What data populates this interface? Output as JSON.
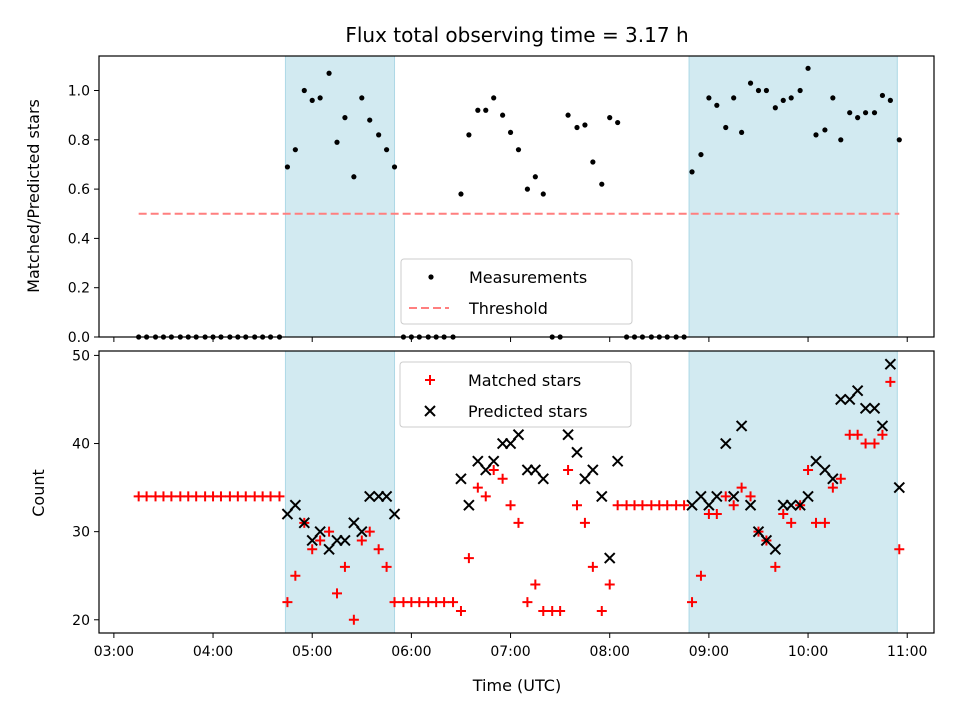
{
  "chart_data": {
    "title": "Flux total observing time = 3.17 h",
    "xlabel": "Time (UTC)",
    "x_ticks": [
      "03:00",
      "04:00",
      "05:00",
      "06:00",
      "07:00",
      "08:00",
      "09:00",
      "10:00",
      "11:00"
    ],
    "x_tick_hours": [
      3,
      4,
      5,
      6,
      7,
      8,
      9,
      10,
      11
    ],
    "xlim_hours": [
      2.85,
      11.27
    ],
    "shaded_spans_hours": [
      [
        4.73,
        5.83
      ],
      [
        8.8,
        10.9
      ]
    ],
    "shade_color": "#add8e6",
    "panels": [
      {
        "type": "scatter",
        "ylabel": "Matched/Predicted stars",
        "ylim": [
          0,
          1.14
        ],
        "yticks": [
          0.0,
          0.2,
          0.4,
          0.6,
          0.8,
          1.0
        ],
        "legend_position": "lower center",
        "legend": [
          "Measurements",
          "Threshold"
        ],
        "series": [
          {
            "name": "Measurements",
            "marker": "dot",
            "color": "#000000",
            "x": [
              3.25,
              3.33,
              3.42,
              3.5,
              3.58,
              3.67,
              3.75,
              3.83,
              3.92,
              4.0,
              4.08,
              4.17,
              4.25,
              4.33,
              4.42,
              4.5,
              4.58,
              4.67,
              4.75,
              4.83,
              4.92,
              5.0,
              5.08,
              5.17,
              5.25,
              5.33,
              5.42,
              5.5,
              5.58,
              5.67,
              5.75,
              5.83,
              5.92,
              6.0,
              6.08,
              6.17,
              6.25,
              6.33,
              6.42,
              6.5,
              6.58,
              6.67,
              6.75,
              6.83,
              6.92,
              7.0,
              7.08,
              7.17,
              7.25,
              7.33,
              7.42,
              7.5,
              7.58,
              7.67,
              7.75,
              7.83,
              7.92,
              8.0,
              8.08,
              8.17,
              8.25,
              8.33,
              8.42,
              8.5,
              8.58,
              8.67,
              8.75,
              8.83,
              8.92,
              9.0,
              9.08,
              9.17,
              9.25,
              9.33,
              9.42,
              9.5,
              9.58,
              9.67,
              9.75,
              9.83,
              9.92,
              10.0,
              10.08,
              10.17,
              10.25,
              10.33,
              10.42,
              10.5,
              10.58,
              10.67,
              10.75,
              10.83,
              10.92
            ],
            "y": [
              0.0,
              0.0,
              0.0,
              0.0,
              0.0,
              0.0,
              0.0,
              0.0,
              0.0,
              0.0,
              0.0,
              0.0,
              0.0,
              0.0,
              0.0,
              0.0,
              0.0,
              0.0,
              0.69,
              0.76,
              1.0,
              0.96,
              0.97,
              1.07,
              0.79,
              0.89,
              0.65,
              0.97,
              0.88,
              0.82,
              0.76,
              0.69,
              0.0,
              0.0,
              0.0,
              0.0,
              0.0,
              0.0,
              0.0,
              0.58,
              0.82,
              0.92,
              0.92,
              0.97,
              0.9,
              0.83,
              0.76,
              0.6,
              0.65,
              0.58,
              0.0,
              0.0,
              0.9,
              0.85,
              0.86,
              0.71,
              0.62,
              0.89,
              0.87,
              0.0,
              0.0,
              0.0,
              0.0,
              0.0,
              0.0,
              0.0,
              0.0,
              0.67,
              0.74,
              0.97,
              0.94,
              0.85,
              0.97,
              0.83,
              1.03,
              1.0,
              1.0,
              0.93,
              0.96,
              0.97,
              1.0,
              1.09,
              0.82,
              0.84,
              0.97,
              0.8,
              0.91,
              0.89,
              0.91,
              0.91,
              0.98,
              0.96,
              0.8
            ]
          },
          {
            "name": "Threshold",
            "marker": "dashed-line",
            "color": "#ff7f7f",
            "x": [
              3.25,
              10.92
            ],
            "y": [
              0.5,
              0.5
            ]
          }
        ]
      },
      {
        "type": "scatter",
        "ylabel": "Count",
        "ylim": [
          18.5,
          50.5
        ],
        "yticks": [
          20,
          30,
          40,
          50
        ],
        "legend_position": "upper center",
        "legend": [
          "Matched stars",
          "Predicted stars"
        ],
        "series": [
          {
            "name": "Matched stars",
            "marker": "plus",
            "color": "#ff0000",
            "x": [
              3.25,
              3.33,
              3.42,
              3.5,
              3.58,
              3.67,
              3.75,
              3.83,
              3.92,
              4.0,
              4.08,
              4.17,
              4.25,
              4.33,
              4.42,
              4.5,
              4.58,
              4.67,
              4.75,
              4.83,
              4.92,
              5.0,
              5.08,
              5.17,
              5.25,
              5.33,
              5.42,
              5.5,
              5.58,
              5.67,
              5.75,
              5.83,
              5.92,
              6.0,
              6.08,
              6.17,
              6.25,
              6.33,
              6.42,
              6.5,
              6.58,
              6.67,
              6.75,
              6.83,
              6.92,
              7.0,
              7.08,
              7.17,
              7.25,
              7.33,
              7.42,
              7.5,
              7.58,
              7.67,
              7.75,
              7.83,
              7.92,
              8.0,
              8.08,
              8.17,
              8.25,
              8.33,
              8.42,
              8.5,
              8.58,
              8.67,
              8.75,
              8.83,
              8.92,
              9.0,
              9.08,
              9.17,
              9.25,
              9.33,
              9.42,
              9.5,
              9.58,
              9.67,
              9.75,
              9.83,
              9.92,
              10.0,
              10.08,
              10.17,
              10.25,
              10.33,
              10.42,
              10.5,
              10.58,
              10.67,
              10.75,
              10.83,
              10.92
            ],
            "y": [
              34,
              34,
              34,
              34,
              34,
              34,
              34,
              34,
              34,
              34,
              34,
              34,
              34,
              34,
              34,
              34,
              34,
              34,
              22,
              25,
              31,
              28,
              29,
              30,
              23,
              26,
              20,
              29,
              30,
              28,
              26,
              22,
              22,
              22,
              22,
              22,
              22,
              22,
              22,
              21,
              27,
              35,
              34,
              37,
              36,
              33,
              31,
              22,
              24,
              21,
              21,
              21,
              37,
              33,
              31,
              26,
              21,
              24,
              33,
              33,
              33,
              33,
              33,
              33,
              33,
              33,
              33,
              22,
              25,
              32,
              32,
              34,
              33,
              35,
              34,
              30,
              29,
              26,
              32,
              31,
              33,
              37,
              31,
              31,
              35,
              36,
              41,
              41,
              40,
              40,
              41,
              47,
              28
            ]
          },
          {
            "name": "Predicted stars",
            "marker": "x",
            "color": "#000000",
            "x": [
              4.75,
              4.83,
              4.92,
              5.0,
              5.08,
              5.17,
              5.25,
              5.33,
              5.42,
              5.5,
              5.58,
              5.67,
              5.75,
              5.83,
              6.5,
              6.58,
              6.67,
              6.75,
              6.83,
              6.92,
              7.0,
              7.08,
              7.17,
              7.25,
              7.33,
              7.58,
              7.67,
              7.75,
              7.83,
              7.92,
              8.0,
              8.08,
              8.83,
              8.92,
              9.0,
              9.08,
              9.17,
              9.25,
              9.33,
              9.42,
              9.5,
              9.58,
              9.67,
              9.75,
              9.83,
              9.92,
              10.0,
              10.08,
              10.17,
              10.25,
              10.33,
              10.42,
              10.5,
              10.58,
              10.67,
              10.75,
              10.83,
              10.92
            ],
            "y": [
              32,
              33,
              31,
              29,
              30,
              28,
              29,
              29,
              31,
              30,
              34,
              34,
              34,
              32,
              36,
              33,
              38,
              37,
              38,
              40,
              40,
              41,
              37,
              37,
              36,
              41,
              39,
              36,
              37,
              34,
              27,
              38,
              33,
              34,
              33,
              34,
              40,
              34,
              42,
              33,
              30,
              29,
              28,
              33,
              33,
              33,
              34,
              38,
              37,
              36,
              45,
              45,
              46,
              44,
              44,
              42,
              49,
              35
            ]
          }
        ]
      }
    ]
  }
}
